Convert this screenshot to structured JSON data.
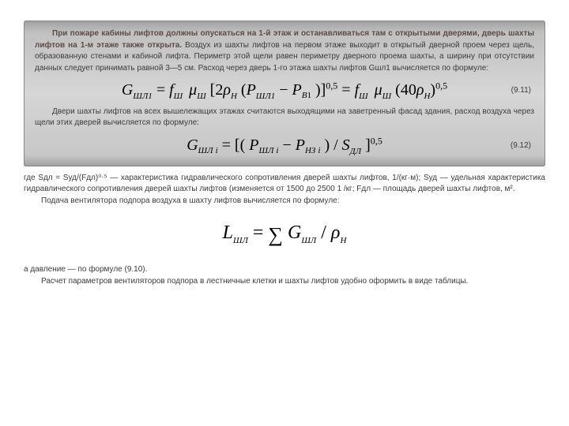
{
  "box": {
    "p1_bold": "При пожаре кабины лифтов должны опускаться на 1-й этаж и останавливаться там с открытыми дверями, дверь шахты лифтов на 1-м этаже также открыта.",
    "p1_rest": " Воздух из шахты лифтов на первом этаже выходит в открытый дверной проем через щель, образованную стенами и кабиной лифта. Периметр этой щели равен периметру дверного проема шахты, а ширину при отсутствии данных следует принимать равной 3—5 см. Расход через дверь 1-го этажа шахты лифтов Gшл1 вычисляется по формуле:",
    "eq_9_11": {
      "number": "(9.11)",
      "G": "G",
      "G_sub": "ШЛ1",
      "eq": " = ",
      "f": "f",
      "f_sub": "Ш",
      "mu": "μ",
      "mu_sub": "Ш",
      "lb": "[2",
      "rho": "ρ",
      "rho_sub": "Н",
      "lp": "(",
      "P1": "P",
      "P1_sub": "ШЛ1",
      "minus": " − ",
      "P2": "P",
      "P2_sub": "В",
      "one": "1",
      "rp": ")]",
      "exp1": "0,5",
      "eq2": " = ",
      "f2": "f",
      "f2_sub": "Ш",
      "mu2": "μ",
      "mu2_sub": "Ш",
      "lp2": "(40",
      "rho2": "ρ",
      "rho2_sub": "Н",
      "rp2": ")",
      "exp2": "0,5"
    },
    "p2": "Двери шахты лифтов на всех вышележащих этажах считаются выходящими на заветренный фасад здания, расход воздуха через щели этих дверей вычисляется по формуле:",
    "eq_9_12": {
      "number": "(9.12)",
      "G": "G",
      "G_subL": "ШЛ",
      "G_subR": "i",
      "eq": " = [(",
      "P1": "P",
      "P1_subL": "ШЛ",
      "P1_subR": "i",
      "minus": " − ",
      "P2": "P",
      "P2_subL": "НЗ",
      "P2_subR": "i",
      "mid": ") / ",
      "S": "S",
      "S_sub": "ДЛ",
      "rb": "]",
      "exp": "0,5"
    }
  },
  "after": {
    "p3": "где Sдл = Sуд/(Fдл)⁰⋅⁵ — характеристика гидравлического сопротивления дверей шахты лифтов, 1/(кг·м); Sуд — удельная характеристика гидравлического сопротивления дверей шахты лифтов (изменяется от 1500 до 2500 1 /кг; Fдл — площадь дверей шахты лифтов, м².",
    "p4": "Подача вентилятора подпора воздуха в шахту лифтов вычисляется по формуле:",
    "eq_L": {
      "L": "L",
      "L_sub": "ШЛ",
      "eq": " = ",
      "sum": "∑",
      "G": "G",
      "G_sub": "ШЛ",
      "div": " / ",
      "rho": "ρ",
      "rho_sub": "Н"
    },
    "p5": "а давление — по формуле (9.10).",
    "p6": "Расчет параметров вентиляторов подпора в лестничные клетки и шахты лифтов удобно оформить в виде таблицы."
  }
}
